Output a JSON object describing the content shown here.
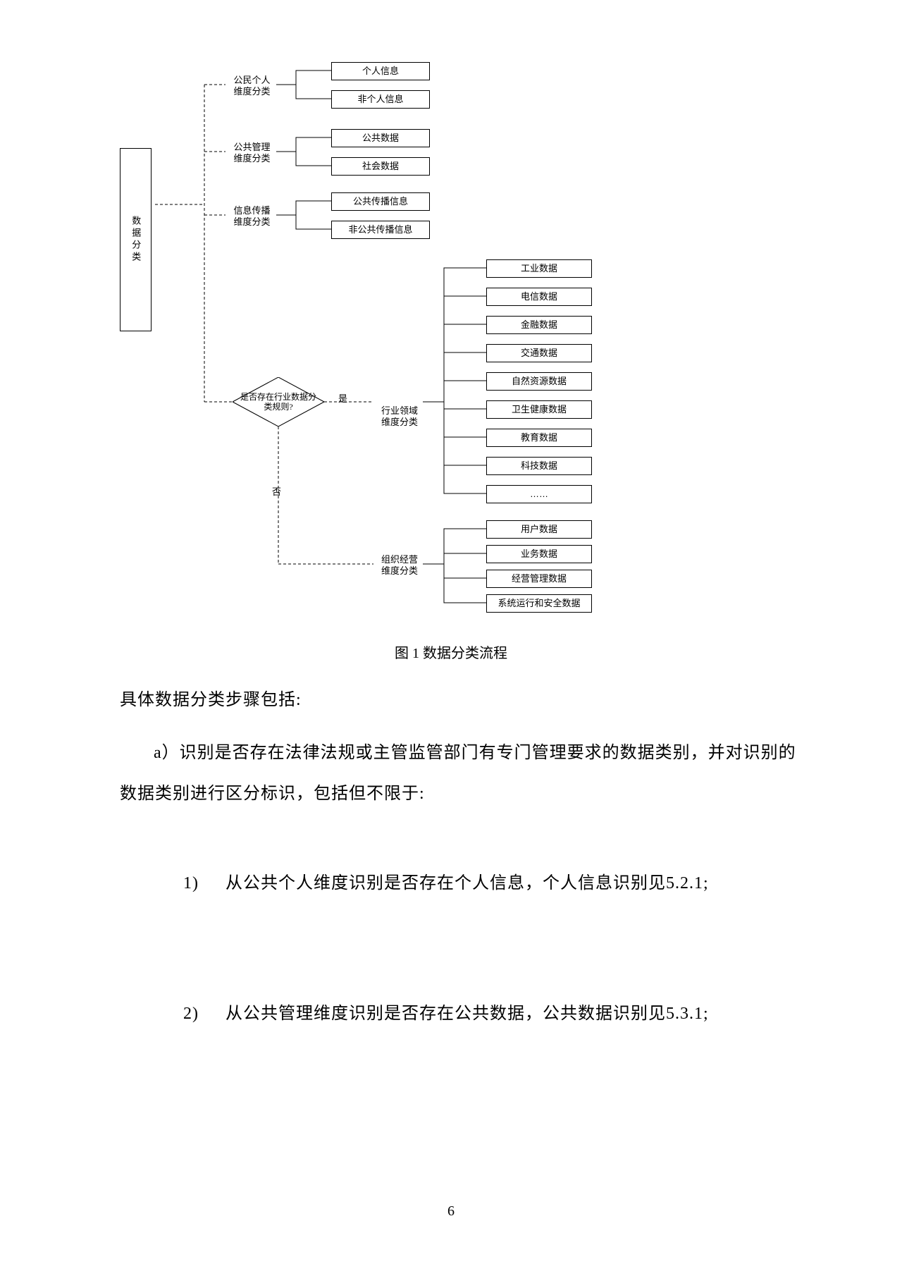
{
  "diagram": {
    "root": "数据分类",
    "branches": [
      {
        "label": "公民个人\n维度分类",
        "items": [
          "个人信息",
          "非个人信息"
        ]
      },
      {
        "label": "公共管理\n维度分类",
        "items": [
          "公共数据",
          "社会数据"
        ]
      },
      {
        "label": "信息传播\n维度分类",
        "items": [
          "公共传播信息",
          "非公共传播信息"
        ]
      }
    ],
    "decision": "是否存在行业数据分类规则?",
    "yes_label": "是",
    "no_label": "否",
    "yes_branch": {
      "label": "行业领域\n维度分类",
      "items": [
        "工业数据",
        "电信数据",
        "金融数据",
        "交通数据",
        "自然资源数据",
        "卫生健康数据",
        "教育数据",
        "科技数据",
        "……"
      ]
    },
    "no_branch": {
      "label": "组织经营\n维度分类",
      "items": [
        "用户数据",
        "业务数据",
        "经营管理数据",
        "系统运行和安全数据"
      ]
    }
  },
  "caption": "图 1  数据分类流程",
  "para1": "具体数据分类步骤包括:",
  "para2": "a）识别是否存在法律法规或主管监管部门有专门管理要求的数据类别，并对识别的数据类别进行区分标识，包括但不限于:",
  "item1_label": "1)",
  "item1": "从公共个人维度识别是否存在个人信息，个人信息识别见5.2.1;",
  "item2_label": "2)",
  "item2": "从公共管理维度识别是否存在公共数据，公共数据识别见5.3.1;",
  "page_number": "6",
  "colors": {
    "line": "#000000",
    "text": "#000000",
    "bg": "#ffffff"
  }
}
